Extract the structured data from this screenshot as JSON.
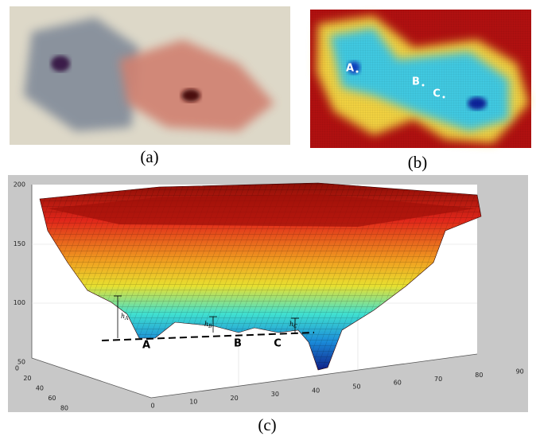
{
  "panels": [
    {
      "label": "(a)"
    },
    {
      "label": "(b)",
      "points": [
        "A",
        "B",
        "C"
      ]
    },
    {
      "label": "(c)",
      "points": [
        "A",
        "B",
        "C"
      ],
      "heights": [
        {
          "symbol": "h",
          "subscript": "A"
        },
        {
          "symbol": "h",
          "subscript": "B"
        },
        {
          "symbol": "h",
          "subscript": "C"
        }
      ],
      "zticks": [
        50,
        100,
        150,
        200
      ],
      "xticks": [
        0,
        10,
        20,
        30,
        40,
        50,
        60,
        70,
        80,
        90
      ],
      "yticks": [
        0,
        20,
        40,
        60,
        80
      ]
    }
  ]
}
